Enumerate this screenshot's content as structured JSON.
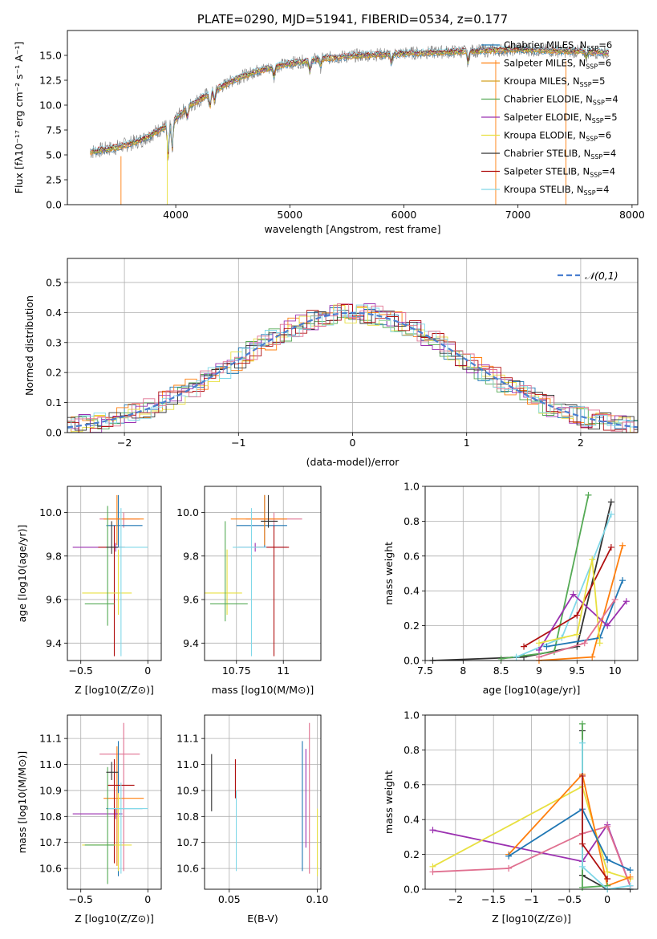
{
  "chart_data": [
    {
      "type": "line",
      "title": "PLATE=0290, MJD=51941, FIBERID=0534, z=0.177",
      "xlabel": "wavelength [Angstrom, rest frame]",
      "ylabel": "Flux [fλ10⁻¹⁷ erg cm⁻² s⁻¹ A⁻¹]",
      "xlim": [
        3050,
        8050
      ],
      "ylim": [
        0,
        17.5
      ],
      "xticks": [
        4000,
        5000,
        6000,
        7000,
        8000
      ],
      "yticks": [
        0.0,
        2.5,
        5.0,
        7.5,
        10.0,
        12.5,
        15.0
      ],
      "legend_position": "right",
      "legend": [
        {
          "label": "Chabrier MILES, N_SSP=6",
          "color": "#1f77b4"
        },
        {
          "label": "Salpeter MILES, N_SSP=6",
          "color": "#ff7f0e"
        },
        {
          "label": "Kroupa MILES, N_SSP=5",
          "color": "#d4a020"
        },
        {
          "label": "Chabrier ELODIE, N_SSP=4",
          "color": "#55aa55"
        },
        {
          "label": "Salpeter ELODIE, N_SSP=5",
          "color": "#9b30b0"
        },
        {
          "label": "Kroupa ELODIE, N_SSP=6",
          "color": "#e8e040"
        },
        {
          "label": "Chabrier STELIB, N_SSP=4",
          "color": "#333333"
        },
        {
          "label": "Salpeter STELIB, N_SSP=4",
          "color": "#b01010"
        },
        {
          "label": "Kroupa STELIB, N_SSP=4",
          "color": "#80d8e8"
        }
      ],
      "continuum": [
        [
          3250,
          5.3
        ],
        [
          3500,
          5.8
        ],
        [
          3700,
          6.5
        ],
        [
          3900,
          7.8
        ],
        [
          4000,
          8.6
        ],
        [
          4100,
          9.8
        ],
        [
          4300,
          11.2
        ],
        [
          4500,
          12.5
        ],
        [
          4700,
          13.4
        ],
        [
          5000,
          14.2
        ],
        [
          5300,
          14.7
        ],
        [
          5600,
          15.0
        ],
        [
          6000,
          15.2
        ],
        [
          6500,
          15.4
        ],
        [
          7000,
          15.6
        ],
        [
          7500,
          15.4
        ],
        [
          7800,
          15.3
        ]
      ],
      "data_color": "#808080"
    },
    {
      "type": "bar",
      "ylabel": "Normed distribution",
      "xlabel": "(data-model)/error",
      "xlim": [
        -2.5,
        2.5
      ],
      "ylim": [
        0,
        0.58
      ],
      "xticks": [
        -2,
        -1,
        0,
        1,
        2
      ],
      "yticks": [
        0.0,
        0.1,
        0.2,
        0.3,
        0.4,
        0.5
      ],
      "legend": [
        {
          "label": "𝒩(0,1)",
          "color": "#4a7fd0"
        }
      ],
      "legend_position": "top-right",
      "bin_width": 0.1,
      "colors": [
        "#1f77b4",
        "#ff7f0e",
        "#55aa55",
        "#9b30b0",
        "#e8e040",
        "#333333",
        "#b01010",
        "#80d8e8",
        "#e07090"
      ]
    },
    {
      "type": "scatter",
      "xlabel": "Z [log10(Z/Z⊙)]",
      "ylabel": "age  [log10(age/yr)]",
      "xlim": [
        -0.6,
        0.1
      ],
      "ylim": [
        9.32,
        10.12
      ],
      "xticks": [
        -0.5,
        0.0
      ],
      "yticks": [
        9.4,
        9.6,
        9.8,
        10.0
      ],
      "errorbars": [
        {
          "x": -0.18,
          "xerr": [
            0.18,
            0.12
          ],
          "y": 9.97,
          "yerr": [
            0.04,
            0.03
          ],
          "color": "#e07090"
        },
        {
          "x": -0.22,
          "xerr": [
            0.09,
            0.18
          ],
          "y": 9.94,
          "yerr": [
            0.1,
            0.14
          ],
          "color": "#1f77b4"
        },
        {
          "x": -0.23,
          "xerr": [
            0.1,
            0.2
          ],
          "y": 9.97,
          "yerr": [
            0.12,
            0.11
          ],
          "color": "#ff7f0e"
        },
        {
          "x": -0.24,
          "xerr": [
            0.32,
            0.05
          ],
          "y": 9.84,
          "yerr": [
            0.02,
            0.02
          ],
          "color": "#9b30b0"
        },
        {
          "x": -0.25,
          "xerr": [
            0.12,
            0.08
          ],
          "y": 9.84,
          "yerr": [
            0.5,
            0.1
          ],
          "color": "#b01010"
        },
        {
          "x": -0.22,
          "xerr": [
            0.27,
            0.1
          ],
          "y": 9.63,
          "yerr": [
            0.1,
            0.2
          ],
          "color": "#e8e040"
        },
        {
          "x": -0.2,
          "xerr": [
            0.1,
            0.2
          ],
          "y": 9.84,
          "yerr": [
            0.5,
            0.18
          ],
          "color": "#80d8e8"
        },
        {
          "x": -0.3,
          "xerr": [
            0.17,
            0.05
          ],
          "y": 9.58,
          "yerr": [
            0.1,
            0.45
          ],
          "color": "#55aa55"
        },
        {
          "x": -0.27,
          "xerr": [
            0.04,
            0.05
          ],
          "y": 9.84,
          "yerr": [
            0.03,
            0.12
          ],
          "color": "#333333"
        }
      ]
    },
    {
      "type": "scatter",
      "xlabel": "mass [log10(M/M⊙)]",
      "xlim": [
        10.58,
        11.2
      ],
      "ylim": [
        9.32,
        10.12
      ],
      "xticks": [
        10.75,
        11.0
      ],
      "yticks": [
        9.4,
        9.6,
        9.8,
        10.0
      ],
      "errorbars": [
        {
          "x": 10.95,
          "xerr": [
            0.15,
            0.15
          ],
          "y": 9.97,
          "yerr": [
            0.04,
            0.03
          ],
          "color": "#e07090"
        },
        {
          "x": 10.9,
          "xerr": [
            0.15,
            0.12
          ],
          "y": 9.94,
          "yerr": [
            0.1,
            0.14
          ],
          "color": "#1f77b4"
        },
        {
          "x": 10.9,
          "xerr": [
            0.18,
            0.12
          ],
          "y": 9.97,
          "yerr": [
            0.12,
            0.11
          ],
          "color": "#ff7f0e"
        },
        {
          "x": 10.85,
          "xerr": [
            0.09,
            0.17
          ],
          "y": 9.84,
          "yerr": [
            0.02,
            0.02
          ],
          "color": "#9b30b0"
        },
        {
          "x": 10.95,
          "xerr": [
            0.1,
            0.08
          ],
          "y": 9.84,
          "yerr": [
            0.5,
            0.1
          ],
          "color": "#b01010"
        },
        {
          "x": 10.7,
          "xerr": [
            0.12,
            0.08
          ],
          "y": 9.63,
          "yerr": [
            0.1,
            0.2
          ],
          "color": "#e8e040"
        },
        {
          "x": 10.83,
          "xerr": [
            0.1,
            0.08
          ],
          "y": 9.84,
          "yerr": [
            0.5,
            0.18
          ],
          "color": "#80d8e8"
        },
        {
          "x": 10.69,
          "xerr": [
            0.08,
            0.12
          ],
          "y": 9.58,
          "yerr": [
            0.08,
            0.38
          ],
          "color": "#55aa55"
        },
        {
          "x": 10.92,
          "xerr": [
            0.04,
            0.05
          ],
          "y": 9.96,
          "yerr": [
            0.03,
            0.12
          ],
          "color": "#333333"
        }
      ]
    },
    {
      "type": "line",
      "xlabel": "age  [log10(age/yr)]",
      "ylabel": "mass weight",
      "xlim": [
        7.5,
        10.3
      ],
      "ylim": [
        0,
        1.0
      ],
      "xticks": [
        7.5,
        8.0,
        8.5,
        9.0,
        9.5,
        10.0
      ],
      "yticks": [
        0.0,
        0.2,
        0.4,
        0.6,
        0.8,
        1.0
      ],
      "series": [
        {
          "color": "#333333",
          "x": [
            7.6,
            8.8,
            9.5,
            9.95
          ],
          "y": [
            0.0,
            0.02,
            0.08,
            0.91
          ]
        },
        {
          "color": "#55aa55",
          "x": [
            8.5,
            9.2,
            9.65
          ],
          "y": [
            0.01,
            0.05,
            0.95
          ]
        },
        {
          "color": "#80d8e8",
          "x": [
            8.7,
            9.3,
            9.95
          ],
          "y": [
            0.02,
            0.13,
            0.84
          ]
        },
        {
          "color": "#ff7f0e",
          "x": [
            9.0,
            9.7,
            10.1
          ],
          "y": [
            0.0,
            0.02,
            0.66
          ]
        },
        {
          "color": "#b01010",
          "x": [
            8.8,
            9.5,
            9.95
          ],
          "y": [
            0.08,
            0.26,
            0.65
          ]
        },
        {
          "color": "#1f77b4",
          "x": [
            9.1,
            9.8,
            10.1
          ],
          "y": [
            0.08,
            0.13,
            0.46
          ]
        },
        {
          "color": "#9b30b0",
          "x": [
            9.0,
            9.45,
            9.9,
            10.15
          ],
          "y": [
            0.06,
            0.38,
            0.2,
            0.34
          ]
        },
        {
          "color": "#e8e040",
          "x": [
            9.0,
            9.5,
            9.7,
            9.8
          ],
          "y": [
            0.1,
            0.15,
            0.58,
            0.1
          ]
        },
        {
          "color": "#e07090",
          "x": [
            9.0,
            9.6,
            10.0
          ],
          "y": [
            0.02,
            0.1,
            0.35
          ]
        }
      ]
    },
    {
      "type": "scatter",
      "xlabel": "Z [log10(Z/Z⊙)]",
      "ylabel": "mass [log10(M/M⊙)]",
      "xlim": [
        -0.6,
        0.1
      ],
      "ylim": [
        10.52,
        11.19
      ],
      "xticks": [
        -0.5,
        0.0
      ],
      "yticks": [
        10.6,
        10.7,
        10.8,
        10.9,
        11.0,
        11.1
      ],
      "errorbars": [
        {
          "x": -0.18,
          "xerr": [
            0.18,
            0.12
          ],
          "y": 11.04,
          "yerr": [
            0.45,
            0.12
          ],
          "color": "#e07090"
        },
        {
          "x": -0.22,
          "xerr": [
            0.09,
            0.18
          ],
          "y": 10.83,
          "yerr": [
            0.26,
            0.26
          ],
          "color": "#1f77b4"
        },
        {
          "x": -0.23,
          "xerr": [
            0.1,
            0.2
          ],
          "y": 10.87,
          "yerr": [
            0.26,
            0.2
          ],
          "color": "#ff7f0e"
        },
        {
          "x": -0.24,
          "xerr": [
            0.32,
            0.05
          ],
          "y": 10.81,
          "yerr": [
            0.02,
            0.02
          ],
          "color": "#9b30b0"
        },
        {
          "x": -0.25,
          "xerr": [
            0.05,
            0.15
          ],
          "y": 10.92,
          "yerr": [
            0.3,
            0.1
          ],
          "color": "#b01010"
        },
        {
          "x": -0.22,
          "xerr": [
            0.27,
            0.1
          ],
          "y": 10.69,
          "yerr": [
            0.1,
            0.2
          ],
          "color": "#e8e040"
        },
        {
          "x": -0.2,
          "xerr": [
            0.1,
            0.2
          ],
          "y": 10.83,
          "yerr": [
            0.25,
            0.1
          ],
          "color": "#80d8e8"
        },
        {
          "x": -0.3,
          "xerr": [
            0.17,
            0.05
          ],
          "y": 10.69,
          "yerr": [
            0.15,
            0.3
          ],
          "color": "#55aa55"
        },
        {
          "x": -0.27,
          "xerr": [
            0.04,
            0.05
          ],
          "y": 10.97,
          "yerr": [
            0.03,
            0.04
          ],
          "color": "#333333"
        }
      ]
    },
    {
      "type": "scatter",
      "xlabel": "E(B-V)",
      "xlim": [
        0.036,
        0.102
      ],
      "ylim": [
        10.52,
        11.19
      ],
      "xticks": [
        0.05,
        0.1
      ],
      "yticks": [
        10.6,
        10.7,
        10.8,
        10.9,
        11.0,
        11.1
      ],
      "errorbars": [
        {
          "x": 0.04,
          "y": 10.93,
          "yerr": [
            0.11,
            0.11
          ],
          "color": "#333333"
        },
        {
          "x": 0.0535,
          "y": 10.94,
          "yerr": [
            0.07,
            0.08
          ],
          "color": "#b01010"
        },
        {
          "x": 0.054,
          "y": 10.76,
          "yerr": [
            0.17,
            0.14
          ],
          "color": "#80d8e8"
        },
        {
          "x": 0.0915,
          "y": 10.84,
          "yerr": [
            0.25,
            0.25
          ],
          "color": "#1f77b4"
        },
        {
          "x": 0.0935,
          "y": 10.86,
          "yerr": [
            0.18,
            0.2
          ],
          "color": "#9b30b0"
        },
        {
          "x": 0.0955,
          "y": 11.03,
          "yerr": [
            0.45,
            0.13
          ],
          "color": "#e07090"
        },
        {
          "x": 0.1,
          "y": 10.7,
          "yerr": [
            0.13,
            0.13
          ],
          "color": "#e8e040"
        }
      ]
    },
    {
      "type": "line",
      "xlabel": "Z [log10(Z/Z⊙)]",
      "ylabel": "mass weight",
      "xlim": [
        -2.4,
        0.4
      ],
      "ylim": [
        0,
        1.0
      ],
      "xticks": [
        -2.0,
        -1.5,
        -1.0,
        -0.5,
        0.0
      ],
      "yticks": [
        0.0,
        0.2,
        0.4,
        0.6,
        0.8,
        1.0
      ],
      "series": [
        {
          "color": "#9b30b0",
          "x": [
            -2.3,
            -0.33,
            0.0,
            0.3
          ],
          "y": [
            0.34,
            0.16,
            0.37,
            0.02
          ]
        },
        {
          "color": "#e8e040",
          "x": [
            -2.3,
            -0.33,
            0.0,
            0.3
          ],
          "y": [
            0.13,
            0.59,
            0.1,
            0.06
          ]
        },
        {
          "color": "#e07090",
          "x": [
            -2.3,
            -1.3,
            -0.33,
            0.0,
            0.3
          ],
          "y": [
            0.1,
            0.12,
            0.32,
            0.36,
            0.02
          ]
        },
        {
          "color": "#ff7f0e",
          "x": [
            -1.3,
            -0.33,
            0.0,
            0.3
          ],
          "y": [
            0.2,
            0.66,
            0.02,
            0.07
          ]
        },
        {
          "color": "#1f77b4",
          "x": [
            -1.3,
            -0.33,
            0.0,
            0.3
          ],
          "y": [
            0.19,
            0.46,
            0.17,
            0.11
          ]
        },
        {
          "color": "#333333",
          "x": [
            -0.33,
            -0.33,
            0.0,
            0.3
          ],
          "y": [
            0.91,
            0.08,
            0.0,
            0.0
          ]
        },
        {
          "color": "#55aa55",
          "x": [
            -0.33,
            -0.33,
            0.0
          ],
          "y": [
            0.95,
            0.01,
            0.02
          ]
        },
        {
          "color": "#80d8e8",
          "x": [
            -0.33,
            -0.33,
            0.0,
            0.3
          ],
          "y": [
            0.84,
            0.13,
            0.0,
            0.02
          ]
        },
        {
          "color": "#b01010",
          "x": [
            -0.33,
            -0.33,
            0.0
          ],
          "y": [
            0.65,
            0.26,
            0.06
          ]
        }
      ]
    }
  ]
}
